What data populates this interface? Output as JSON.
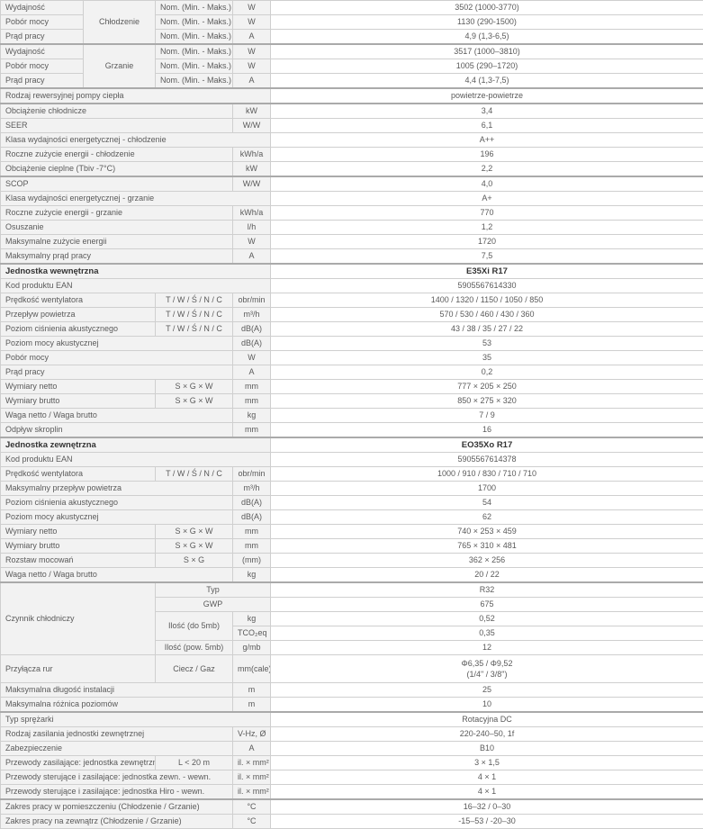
{
  "colors": {
    "label_bg": "#f2f2f2",
    "border": "#cfcfcf",
    "separator": "#aaaaaa",
    "text": "#5a5a5a",
    "header_text": "#333333"
  },
  "table": {
    "columns": [
      92,
      80,
      86,
      42,
      481
    ],
    "rows": [
      {
        "cells": [
          {
            "t": "Wydajność",
            "cls": "label"
          },
          {
            "t": "Chłodzenie",
            "cls": "sub",
            "rs": 3,
            "name": "mode-cooling-label"
          },
          {
            "t": "Nom. (Min. - Maks.)",
            "cls": "sub"
          },
          {
            "t": "W",
            "cls": "sub"
          },
          {
            "t": "3502 (1000-3770)",
            "cls": "val"
          }
        ]
      },
      {
        "cells": [
          {
            "t": "Pobór mocy",
            "cls": "label"
          },
          {
            "t": "Nom. (Min. - Maks.)",
            "cls": "sub"
          },
          {
            "t": "W",
            "cls": "sub"
          },
          {
            "t": "1130 (290-1500)",
            "cls": "val"
          }
        ]
      },
      {
        "cells": [
          {
            "t": "Prąd pracy",
            "cls": "label"
          },
          {
            "t": "Nom. (Min. - Maks.)",
            "cls": "sub"
          },
          {
            "t": "A",
            "cls": "sub"
          },
          {
            "t": "4,9 (1,3-6,5)",
            "cls": "val"
          }
        ]
      },
      {
        "sep": true,
        "cells": [
          {
            "t": "Wydajność",
            "cls": "label"
          },
          {
            "t": "Grzanie",
            "cls": "sub",
            "rs": 3,
            "name": "mode-heating-label"
          },
          {
            "t": "Nom. (Min. - Maks.)",
            "cls": "sub"
          },
          {
            "t": "W",
            "cls": "sub"
          },
          {
            "t": "3517 (1000–3810)",
            "cls": "val"
          }
        ]
      },
      {
        "cells": [
          {
            "t": "Pobór mocy",
            "cls": "label"
          },
          {
            "t": "Nom. (Min. - Maks.)",
            "cls": "sub"
          },
          {
            "t": "W",
            "cls": "sub"
          },
          {
            "t": "1005 (290–1720)",
            "cls": "val"
          }
        ]
      },
      {
        "cells": [
          {
            "t": "Prąd pracy",
            "cls": "label"
          },
          {
            "t": "Nom. (Min. - Maks.)",
            "cls": "sub"
          },
          {
            "t": "A",
            "cls": "sub"
          },
          {
            "t": "4,4 (1,3-7,5)",
            "cls": "val"
          }
        ]
      },
      {
        "sep": true,
        "cells": [
          {
            "t": "Rodzaj rewersyjnej pompy ciepła",
            "cls": "label",
            "cs": 4
          },
          {
            "t": "powietrze-powietrze",
            "cls": "val"
          }
        ]
      },
      {
        "sep": true,
        "cells": [
          {
            "t": "Obciążenie chłodnicze",
            "cls": "label",
            "cs": 3
          },
          {
            "t": "kW",
            "cls": "sub"
          },
          {
            "t": "3,4",
            "cls": "val"
          }
        ]
      },
      {
        "cells": [
          {
            "t": "SEER",
            "cls": "label",
            "cs": 3
          },
          {
            "t": "W/W",
            "cls": "sub"
          },
          {
            "t": "6,1",
            "cls": "val"
          }
        ]
      },
      {
        "cells": [
          {
            "t": "Klasa wydajności energetycznej - chłodzenie",
            "cls": "label",
            "cs": 4
          },
          {
            "t": "A++",
            "cls": "val"
          }
        ]
      },
      {
        "cells": [
          {
            "t": "Roczne zużycie energii - chłodzenie",
            "cls": "label",
            "cs": 3
          },
          {
            "t": "kWh/a",
            "cls": "sub"
          },
          {
            "t": "196",
            "cls": "val"
          }
        ]
      },
      {
        "cells": [
          {
            "t": "Obciążenie cieplne (Tbiv -7°C)",
            "cls": "label",
            "cs": 3
          },
          {
            "t": "kW",
            "cls": "sub"
          },
          {
            "t": "2,2",
            "cls": "val"
          }
        ]
      },
      {
        "sep": true,
        "cells": [
          {
            "t": "SCOP",
            "cls": "label",
            "cs": 3
          },
          {
            "t": "W/W",
            "cls": "sub"
          },
          {
            "t": "4,0",
            "cls": "val"
          }
        ]
      },
      {
        "cells": [
          {
            "t": "Klasa wydajności energetycznej - grzanie",
            "cls": "label",
            "cs": 4
          },
          {
            "t": "A+",
            "cls": "val"
          }
        ]
      },
      {
        "cells": [
          {
            "t": "Roczne zużycie energii - grzanie",
            "cls": "label",
            "cs": 3
          },
          {
            "t": "kWh/a",
            "cls": "sub"
          },
          {
            "t": "770",
            "cls": "val"
          }
        ]
      },
      {
        "cells": [
          {
            "t": "Osuszanie",
            "cls": "label",
            "cs": 3
          },
          {
            "t": "l/h",
            "cls": "sub"
          },
          {
            "t": "1,2",
            "cls": "val"
          }
        ]
      },
      {
        "cells": [
          {
            "t": "Maksymalne zużycie energii",
            "cls": "label",
            "cs": 3
          },
          {
            "t": "W",
            "cls": "sub"
          },
          {
            "t": "1720",
            "cls": "val"
          }
        ]
      },
      {
        "cells": [
          {
            "t": "Maksymalny prąd pracy",
            "cls": "label",
            "cs": 3
          },
          {
            "t": "A",
            "cls": "sub"
          },
          {
            "t": "7,5",
            "cls": "val"
          }
        ]
      },
      {
        "sep": true,
        "head": true,
        "cells": [
          {
            "t": "Jednostka wewnętrzna",
            "cls": "labelhead",
            "cs": 4,
            "name": "section-title-indoor-unit"
          },
          {
            "t": "E35Xi R17",
            "cls": "valhead",
            "name": "indoor-unit-model"
          }
        ]
      },
      {
        "cells": [
          {
            "t": "Kod produktu EAN",
            "cls": "label",
            "cs": 4
          },
          {
            "t": "5905567614330",
            "cls": "val"
          }
        ]
      },
      {
        "cells": [
          {
            "t": "Prędkość wentylatora",
            "cls": "label",
            "cs": 2
          },
          {
            "t": "T / W / Ś / N / C",
            "cls": "sub"
          },
          {
            "t": "obr/min",
            "cls": "sub"
          },
          {
            "t": "1400 / 1320 / 1150 / 1050 / 850",
            "cls": "val"
          }
        ]
      },
      {
        "cells": [
          {
            "t": "Przepływ powietrza",
            "cls": "label",
            "cs": 2
          },
          {
            "t": "T / W / Ś / N / C",
            "cls": "sub"
          },
          {
            "t": "m³/h",
            "cls": "sub"
          },
          {
            "t": "570 / 530 / 460 / 430 / 360",
            "cls": "val"
          }
        ]
      },
      {
        "cells": [
          {
            "t": "Poziom ciśnienia akustycznego",
            "cls": "label",
            "cs": 2
          },
          {
            "t": "T / W / Ś / N / C",
            "cls": "sub"
          },
          {
            "t": "dB(A)",
            "cls": "sub"
          },
          {
            "t": "43 / 38 / 35 / 27 / 22",
            "cls": "val"
          }
        ]
      },
      {
        "cells": [
          {
            "t": "Poziom mocy akustycznej",
            "cls": "label",
            "cs": 3
          },
          {
            "t": "dB(A)",
            "cls": "sub"
          },
          {
            "t": "53",
            "cls": "val"
          }
        ]
      },
      {
        "cells": [
          {
            "t": "Pobór mocy",
            "cls": "label",
            "cs": 3
          },
          {
            "t": "W",
            "cls": "sub"
          },
          {
            "t": "35",
            "cls": "val"
          }
        ]
      },
      {
        "cells": [
          {
            "t": "Prąd pracy",
            "cls": "label",
            "cs": 3
          },
          {
            "t": "A",
            "cls": "sub"
          },
          {
            "t": "0,2",
            "cls": "val"
          }
        ]
      },
      {
        "cells": [
          {
            "t": "Wymiary netto",
            "cls": "label",
            "cs": 2
          },
          {
            "t": "S × G × W",
            "cls": "sub"
          },
          {
            "t": "mm",
            "cls": "sub"
          },
          {
            "t": "777 × 205 × 250",
            "cls": "val"
          }
        ]
      },
      {
        "cells": [
          {
            "t": "Wymiary brutto",
            "cls": "label",
            "cs": 2
          },
          {
            "t": "S × G × W",
            "cls": "sub"
          },
          {
            "t": "mm",
            "cls": "sub"
          },
          {
            "t": "850 × 275 × 320",
            "cls": "val"
          }
        ]
      },
      {
        "cells": [
          {
            "t": "Waga netto / Waga brutto",
            "cls": "label",
            "cs": 3
          },
          {
            "t": "kg",
            "cls": "sub"
          },
          {
            "t": "7 / 9",
            "cls": "val"
          }
        ]
      },
      {
        "cells": [
          {
            "t": "Odpływ skroplin",
            "cls": "label",
            "cs": 3
          },
          {
            "t": "mm",
            "cls": "sub"
          },
          {
            "t": "16",
            "cls": "val"
          }
        ]
      },
      {
        "sep": true,
        "head": true,
        "cells": [
          {
            "t": "Jednostka zewnętrzna",
            "cls": "labelhead",
            "cs": 4,
            "name": "section-title-outdoor-unit"
          },
          {
            "t": "EO35Xo R17",
            "cls": "valhead",
            "name": "outdoor-unit-model"
          }
        ]
      },
      {
        "cells": [
          {
            "t": "Kod produktu EAN",
            "cls": "label",
            "cs": 4
          },
          {
            "t": "5905567614378",
            "cls": "val"
          }
        ]
      },
      {
        "cells": [
          {
            "t": "Prędkość wentylatora",
            "cls": "label",
            "cs": 2
          },
          {
            "t": "T / W / Ś / N / C",
            "cls": "sub"
          },
          {
            "t": "obr/min",
            "cls": "sub"
          },
          {
            "t": "1000 / 910 / 830 / 710 / 710",
            "cls": "val"
          }
        ]
      },
      {
        "cells": [
          {
            "t": "Maksymalny przepływ powietrza",
            "cls": "label",
            "cs": 3
          },
          {
            "t": "m³/h",
            "cls": "sub"
          },
          {
            "t": "1700",
            "cls": "val"
          }
        ]
      },
      {
        "cells": [
          {
            "t": "Poziom ciśnienia akustycznego",
            "cls": "label",
            "cs": 3
          },
          {
            "t": "dB(A)",
            "cls": "sub"
          },
          {
            "t": "54",
            "cls": "val"
          }
        ]
      },
      {
        "cells": [
          {
            "t": "Poziom mocy akustycznej",
            "cls": "label",
            "cs": 3
          },
          {
            "t": "dB(A)",
            "cls": "sub"
          },
          {
            "t": "62",
            "cls": "val"
          }
        ]
      },
      {
        "cells": [
          {
            "t": "Wymiary netto",
            "cls": "label",
            "cs": 2
          },
          {
            "t": "S × G × W",
            "cls": "sub"
          },
          {
            "t": "mm",
            "cls": "sub"
          },
          {
            "t": "740 × 253 × 459",
            "cls": "val"
          }
        ]
      },
      {
        "cells": [
          {
            "t": "Wymiary brutto",
            "cls": "label",
            "cs": 2
          },
          {
            "t": "S × G × W",
            "cls": "sub"
          },
          {
            "t": "mm",
            "cls": "sub"
          },
          {
            "t": "765 × 310 × 481",
            "cls": "val"
          }
        ]
      },
      {
        "cells": [
          {
            "t": "Rozstaw mocowań",
            "cls": "label",
            "cs": 2
          },
          {
            "t": "S × G",
            "cls": "sub"
          },
          {
            "t": "(mm)",
            "cls": "sub"
          },
          {
            "t": "362 × 256",
            "cls": "val"
          }
        ]
      },
      {
        "cells": [
          {
            "t": "Waga netto / Waga brutto",
            "cls": "label",
            "cs": 3
          },
          {
            "t": "kg",
            "cls": "sub"
          },
          {
            "t": "20 / 22",
            "cls": "val"
          }
        ]
      },
      {
        "sep": true,
        "cells": [
          {
            "t": "Czynnik chłodniczy",
            "cls": "label",
            "cs": 2,
            "rs": 5
          },
          {
            "t": "Typ",
            "cls": "sub",
            "cs": 2
          },
          {
            "t": "R32",
            "cls": "val"
          }
        ]
      },
      {
        "cells": [
          {
            "t": "GWP",
            "cls": "sub",
            "cs": 2
          },
          {
            "t": "675",
            "cls": "val"
          }
        ]
      },
      {
        "cells": [
          {
            "t": "Ilość (do 5mb)",
            "cls": "sub",
            "rs": 2
          },
          {
            "t": "kg",
            "cls": "sub"
          },
          {
            "t": "0,52",
            "cls": "val"
          }
        ]
      },
      {
        "cells": [
          {
            "t": "TCO₂eq",
            "cls": "sub"
          },
          {
            "t": "0,35",
            "cls": "val"
          }
        ]
      },
      {
        "cells": [
          {
            "t": "Ilość (pow. 5mb)",
            "cls": "sub"
          },
          {
            "t": "g/mb",
            "cls": "sub"
          },
          {
            "t": "12",
            "cls": "val"
          }
        ]
      },
      {
        "tall": true,
        "cells": [
          {
            "t": "Przyłącza rur",
            "cls": "label",
            "cs": 2
          },
          {
            "t": "Ciecz / Gaz",
            "cls": "sub"
          },
          {
            "t": "mm(cale)",
            "cls": "sub"
          },
          {
            "lines": [
              "Φ6,35 / Φ9,52",
              "(1/4\" / 3/8\")"
            ],
            "cls": "val"
          }
        ]
      },
      {
        "cells": [
          {
            "t": "Maksymalna długość instalacji",
            "cls": "label",
            "cs": 3
          },
          {
            "t": "m",
            "cls": "sub"
          },
          {
            "t": "25",
            "cls": "val"
          }
        ]
      },
      {
        "cells": [
          {
            "t": "Maksymalna różnica poziomów",
            "cls": "label",
            "cs": 3
          },
          {
            "t": "m",
            "cls": "sub"
          },
          {
            "t": "10",
            "cls": "val"
          }
        ]
      },
      {
        "sep": true,
        "cells": [
          {
            "t": "Typ sprężarki",
            "cls": "label",
            "cs": 4
          },
          {
            "t": "Rotacyjna DC",
            "cls": "val"
          }
        ]
      },
      {
        "cells": [
          {
            "t": "Rodzaj zasilania jednostki zewnętrznej",
            "cls": "label",
            "cs": 3
          },
          {
            "t": "V-Hz, Ø",
            "cls": "sub"
          },
          {
            "t": "220-240–50, 1f",
            "cls": "val"
          }
        ]
      },
      {
        "cells": [
          {
            "t": "Zabezpieczenie",
            "cls": "label",
            "cs": 3
          },
          {
            "t": "A",
            "cls": "sub"
          },
          {
            "t": "B10",
            "cls": "val"
          }
        ]
      },
      {
        "cells": [
          {
            "t": "Przewody zasilające: jednostka zewnętrzna",
            "cls": "label",
            "cs": 2
          },
          {
            "t": "L < 20 m",
            "cls": "sub"
          },
          {
            "t": "il. × mm²",
            "cls": "sub"
          },
          {
            "t": "3 × 1,5",
            "cls": "val"
          }
        ]
      },
      {
        "cells": [
          {
            "t": "Przewody sterujące i zasilające: jednostka zewn. - wewn.",
            "cls": "label",
            "cs": 3
          },
          {
            "t": "il. × mm²",
            "cls": "sub"
          },
          {
            "t": "4 × 1",
            "cls": "val"
          }
        ]
      },
      {
        "cells": [
          {
            "t": "Przewody sterujące i zasilające: jednostka Hiro - wewn.",
            "cls": "label",
            "cs": 3
          },
          {
            "t": "il. × mm²",
            "cls": "sub"
          },
          {
            "t": "4 × 1",
            "cls": "val"
          }
        ]
      },
      {
        "sep": true,
        "cells": [
          {
            "t": "Zakres pracy w pomieszczeniu (Chłodzenie / Grzanie)",
            "cls": "label",
            "cs": 3
          },
          {
            "t": "°C",
            "cls": "sub"
          },
          {
            "t": "16–32 / 0–30",
            "cls": "val"
          }
        ]
      },
      {
        "cells": [
          {
            "t": "Zakres pracy na zewnątrz (Chłodzenie / Grzanie)",
            "cls": "label",
            "cs": 3
          },
          {
            "t": "°C",
            "cls": "sub"
          },
          {
            "t": "-15–53 / -20–30",
            "cls": "val"
          }
        ]
      }
    ]
  }
}
